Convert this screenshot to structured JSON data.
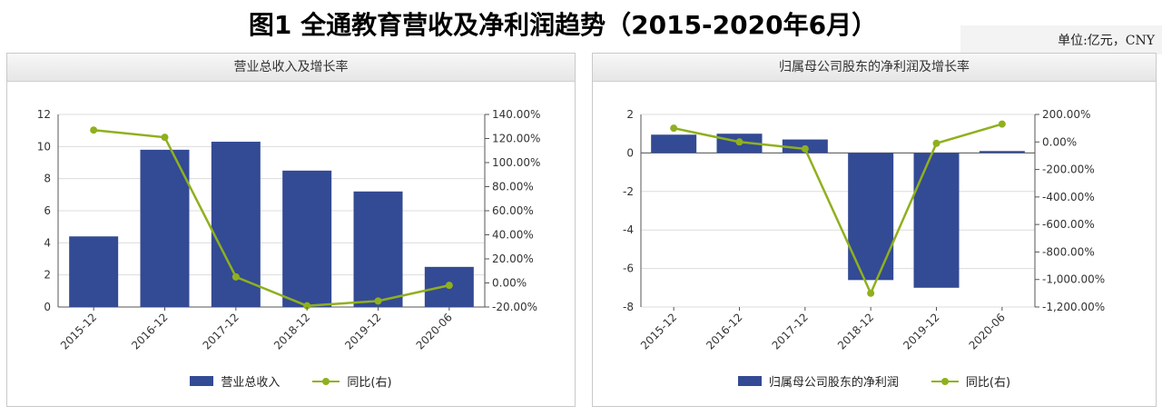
{
  "page": {
    "title": "图1 全通教育营收及净利润趋势（2015-2020年6月）",
    "unit": "单位:亿元，CNY"
  },
  "colors": {
    "bar": "#334a94",
    "line": "#8fb01e",
    "grid": "#dcdcdc",
    "axis": "#555555"
  },
  "legend": {
    "left": {
      "bar": "营业总收入",
      "line": "同比(右)"
    },
    "right": {
      "bar": "归属母公司股东的净利润",
      "line": "同比(右)"
    }
  },
  "chart_data": [
    {
      "type": "bar",
      "title": "营业总收入及增长率",
      "categories": [
        "2015-12",
        "2016-12",
        "2017-12",
        "2018-12",
        "2019-12",
        "2020-06"
      ],
      "series": [
        {
          "name": "营业总收入",
          "type": "bar",
          "axis": "left",
          "values": [
            4.4,
            9.8,
            10.3,
            8.5,
            7.2,
            2.5
          ]
        },
        {
          "name": "同比(右)",
          "type": "line",
          "axis": "right",
          "values": [
            127,
            121,
            5,
            -19,
            -15,
            -2
          ]
        }
      ],
      "left_axis": {
        "ticks": [
          "0",
          "2",
          "4",
          "6",
          "8",
          "10",
          "12"
        ],
        "range": [
          0,
          12
        ]
      },
      "right_axis": {
        "ticks": [
          "-20.00%",
          "0.00%",
          "20.00%",
          "40.00%",
          "60.00%",
          "80.00%",
          "100.00%",
          "120.00%",
          "140.00%"
        ],
        "range": [
          -20,
          140
        ]
      },
      "grid": true
    },
    {
      "type": "bar",
      "title": "归属母公司股东的净利润及增长率",
      "categories": [
        "2015-12",
        "2016-12",
        "2017-12",
        "2018-12",
        "2019-12",
        "2020-06"
      ],
      "series": [
        {
          "name": "归属母公司股东的净利润",
          "type": "bar",
          "axis": "left",
          "values": [
            0.95,
            1.0,
            0.7,
            -6.6,
            -7.0,
            0.1
          ]
        },
        {
          "name": "同比(右)",
          "type": "line",
          "axis": "right",
          "values": [
            100,
            0,
            -50,
            -1100,
            -10,
            130
          ]
        }
      ],
      "left_axis": {
        "ticks": [
          "-8",
          "-6",
          "-4",
          "-2",
          "0",
          "2"
        ],
        "range": [
          -8,
          2
        ]
      },
      "right_axis": {
        "ticks": [
          "-1,200.00%",
          "-1,000.00%",
          "-800.00%",
          "-600.00%",
          "-400.00%",
          "-200.00%",
          "0.00%",
          "200.00%"
        ],
        "range": [
          -1200,
          200
        ]
      },
      "grid": true
    }
  ]
}
